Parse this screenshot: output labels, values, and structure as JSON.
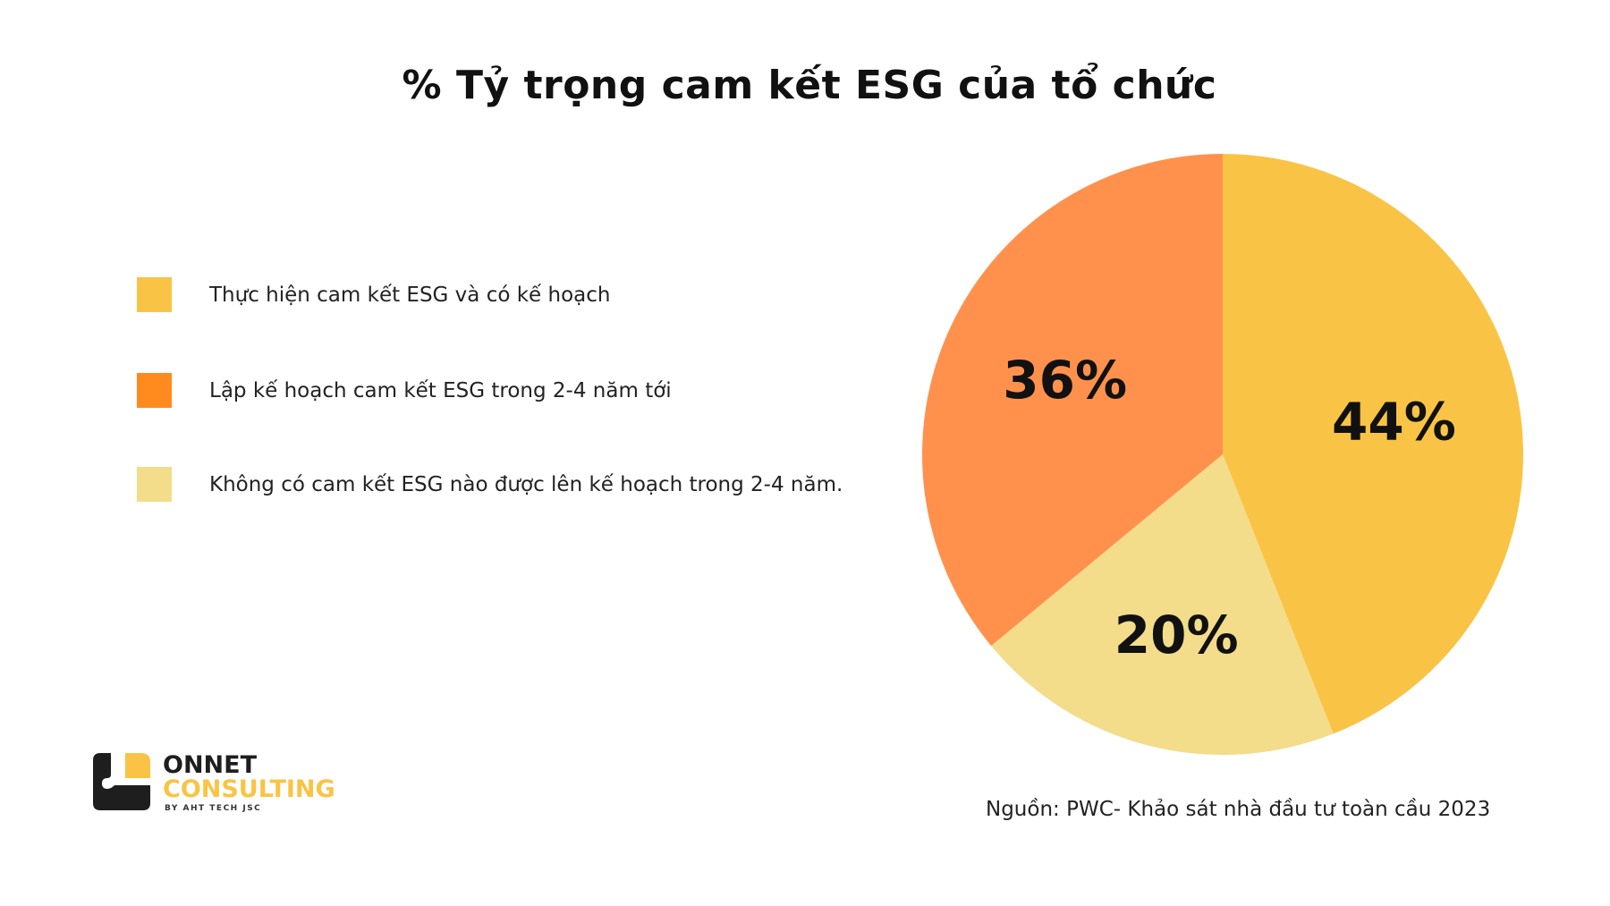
{
  "chart_data": {
    "type": "pie",
    "title": "% Tỷ trọng cam kết ESG của tổ chức",
    "categories": [
      "Thực hiện cam kết ESG và có kế hoạch",
      "Không có cam kết ESG nào được lên kế hoạch trong 2-4 năm.",
      "Lập kế hoạch cam kết ESG trong 2-4 năm tới"
    ],
    "values": [
      44,
      20,
      36
    ],
    "data_labels": [
      "44%",
      "20%",
      "36%"
    ],
    "colors": [
      "#F9C445",
      "#F3DC8A",
      "#FF914D"
    ],
    "legend_placement": "left",
    "legend": [
      {
        "label": "Thực hiện cam kết ESG và có kế hoạch",
        "color": "#F9C445"
      },
      {
        "label": "Lập kế hoạch cam kết ESG trong 2-4 năm tới",
        "color": "#FF8A1E"
      },
      {
        "label": "Không có cam kết ESG nào được lên kế hoạch trong 2-4 năm.",
        "color": "#F3DC8A"
      }
    ]
  },
  "source": "Nguồn: PWC- Khảo sát nhà đầu tư toàn cầu 2023",
  "logo": {
    "line1": "ONNET",
    "line2": "CONSULTING",
    "line3": "BY AHT TECH JSC"
  }
}
